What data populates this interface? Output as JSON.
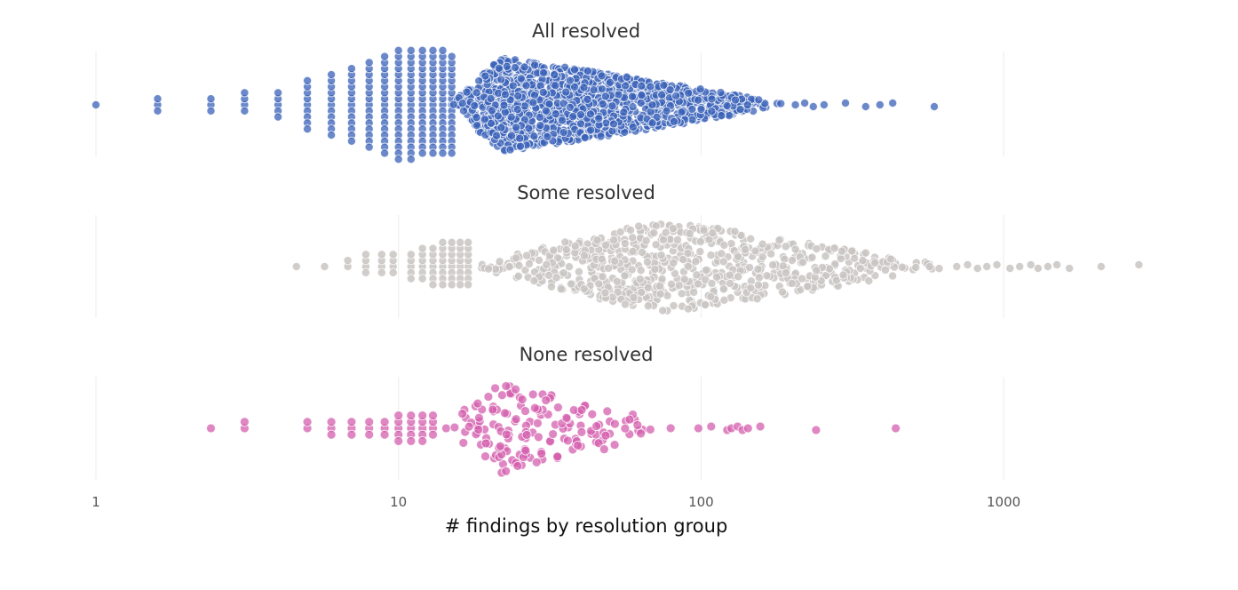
{
  "chart_data": {
    "type": "scatter",
    "subtype": "beeswarm",
    "x_scale": "log",
    "xlim": [
      1,
      3000
    ],
    "xlabel": "# findings by resolution group",
    "x_ticks": [
      {
        "value": 1,
        "label": "1"
      },
      {
        "value": 10,
        "label": "10"
      },
      {
        "value": 100,
        "label": "100"
      },
      {
        "value": 1000,
        "label": "1000"
      }
    ],
    "grid": true,
    "series": [
      {
        "name": "All resolved",
        "color": "#3a62b8",
        "approx_count": 1700,
        "distribution": [
          {
            "value": 1,
            "count": 1
          },
          {
            "value": 1.6,
            "count": 3
          },
          {
            "value": 2.4,
            "count": 3
          },
          {
            "value": 3.1,
            "count": 4
          },
          {
            "value": 4,
            "count": 5
          },
          {
            "value": 5,
            "count": 9
          },
          {
            "value": 6,
            "count": 11
          },
          {
            "value": 7,
            "count": 13
          },
          {
            "value": 8,
            "count": 15
          },
          {
            "value": 9,
            "count": 17
          },
          {
            "value": 10,
            "count": 19
          },
          {
            "value": 11,
            "count": 19
          },
          {
            "value": 12,
            "count": 18
          },
          {
            "value": 13,
            "count": 18
          },
          {
            "value": 14,
            "count": 18
          },
          {
            "value": 15,
            "count": 17
          }
        ],
        "density": {
          "from": 15,
          "to": 190,
          "mode": 22,
          "points": 1450
        },
        "outliers": [
          205,
          220,
          235,
          255,
          300,
          350,
          390,
          430,
          590
        ]
      },
      {
        "name": "Some resolved",
        "color": "#c8c4c2",
        "approx_count": 780,
        "distribution": [
          {
            "value": 4.6,
            "count": 1
          },
          {
            "value": 5.7,
            "count": 1
          },
          {
            "value": 6.8,
            "count": 2
          },
          {
            "value": 7.8,
            "count": 4
          },
          {
            "value": 8.8,
            "count": 4
          },
          {
            "value": 9.6,
            "count": 4
          },
          {
            "value": 11,
            "count": 5
          },
          {
            "value": 12,
            "count": 6
          },
          {
            "value": 13,
            "count": 7
          },
          {
            "value": 14,
            "count": 8
          },
          {
            "value": 15,
            "count": 8
          },
          {
            "value": 16,
            "count": 8
          },
          {
            "value": 17,
            "count": 8
          }
        ],
        "density": {
          "from": 17,
          "to": 660,
          "mode": 75,
          "points": 700
        },
        "outliers": [
          700,
          760,
          820,
          880,
          950,
          1050,
          1130,
          1230,
          1300,
          1400,
          1500,
          1650,
          2100,
          2800
        ]
      },
      {
        "name": "None resolved",
        "color": "#d45fae",
        "approx_count": 210,
        "distribution": [
          {
            "value": 2.4,
            "count": 1
          },
          {
            "value": 3.1,
            "count": 2
          },
          {
            "value": 4,
            "count": 0
          },
          {
            "value": 5,
            "count": 2
          },
          {
            "value": 6,
            "count": 3
          },
          {
            "value": 7,
            "count": 3
          },
          {
            "value": 8,
            "count": 3
          },
          {
            "value": 9,
            "count": 3
          },
          {
            "value": 10,
            "count": 5
          },
          {
            "value": 11,
            "count": 5
          },
          {
            "value": 12,
            "count": 5
          },
          {
            "value": 13,
            "count": 4
          }
        ],
        "density": {
          "from": 14,
          "to": 85,
          "mode": 22,
          "points": 160
        },
        "outliers": [
          98,
          108,
          122,
          126,
          132,
          137,
          143,
          157,
          240,
          440
        ]
      }
    ]
  }
}
